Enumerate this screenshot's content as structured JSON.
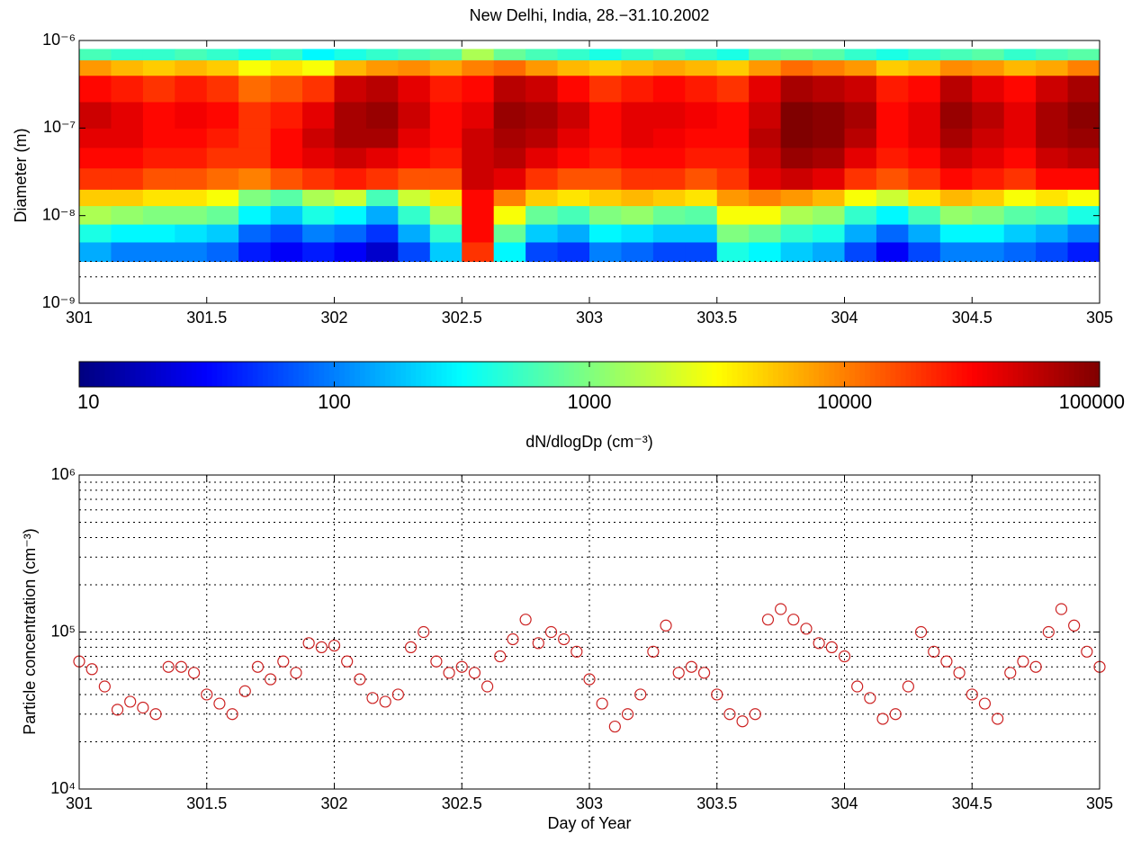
{
  "chart_data": [
    {
      "type": "heatmap",
      "title": "New Delhi, India, 28.−31.10.2002",
      "ylabel": "Diameter (m)",
      "xlim": [
        301,
        305
      ],
      "xticks": [
        301,
        301.5,
        302,
        302.5,
        303,
        303.5,
        304,
        304.5,
        305
      ],
      "ylim": [
        1e-09,
        1e-06
      ],
      "log_y": true,
      "yticks": [
        {
          "value": 1e-09,
          "label": "10⁻⁹"
        },
        {
          "value": 1e-08,
          "label": "10⁻⁸"
        },
        {
          "value": 1e-07,
          "label": "10⁻⁷"
        },
        {
          "value": 1e-06,
          "label": "10⁻⁶"
        }
      ],
      "ygrid_dotted": [
        2e-09,
        3e-09
      ],
      "colormap": "jet",
      "x_edges": [
        301,
        301.125,
        301.25,
        301.375,
        301.5,
        301.625,
        301.75,
        301.875,
        302,
        302.125,
        302.25,
        302.375,
        302.5,
        302.625,
        302.75,
        302.875,
        303,
        303.125,
        303.25,
        303.375,
        303.5,
        303.625,
        303.75,
        303.875,
        304,
        304.125,
        304.25,
        304.375,
        304.5,
        304.625,
        304.75,
        304.875,
        305
      ],
      "y_edges": [
        3e-09,
        5e-09,
        8e-09,
        1.3e-08,
        2e-08,
        3.5e-08,
        6e-08,
        1e-07,
        2e-07,
        4e-07,
        6e-07,
        8e-07
      ],
      "z": [
        [
          150,
          100,
          100,
          100,
          80,
          40,
          30,
          40,
          30,
          20,
          60,
          200,
          20000,
          300,
          60,
          50,
          100,
          80,
          60,
          60,
          400,
          300,
          200,
          150,
          60,
          30,
          60,
          100,
          100,
          80,
          60,
          40
        ],
        [
          400,
          300,
          300,
          250,
          200,
          80,
          60,
          100,
          80,
          50,
          150,
          500,
          30000,
          800,
          200,
          150,
          300,
          250,
          200,
          200,
          1000,
          800,
          500,
          400,
          150,
          80,
          150,
          300,
          300,
          200,
          150,
          100
        ],
        [
          1500,
          1200,
          1000,
          1000,
          800,
          300,
          200,
          400,
          300,
          150,
          500,
          1500,
          30000,
          3000,
          800,
          600,
          1000,
          1200,
          800,
          700,
          3000,
          3000,
          1500,
          1200,
          500,
          300,
          600,
          1200,
          1000,
          700,
          600,
          400
        ],
        [
          5000,
          5000,
          4000,
          4000,
          3000,
          1000,
          700,
          1500,
          2000,
          600,
          2000,
          4000,
          30000,
          10000,
          5000,
          4000,
          5000,
          6000,
          5000,
          4000,
          8000,
          10000,
          8000,
          6000,
          3000,
          2000,
          4000,
          6000,
          5000,
          3000,
          4000,
          3000
        ],
        [
          20000,
          20000,
          15000,
          15000,
          12000,
          10000,
          15000,
          20000,
          25000,
          20000,
          15000,
          15000,
          50000,
          40000,
          20000,
          15000,
          15000,
          20000,
          20000,
          15000,
          20000,
          40000,
          50000,
          40000,
          20000,
          15000,
          20000,
          30000,
          25000,
          20000,
          30000,
          30000
        ],
        [
          30000,
          30000,
          25000,
          25000,
          20000,
          20000,
          30000,
          40000,
          50000,
          40000,
          30000,
          25000,
          50000,
          60000,
          40000,
          30000,
          25000,
          30000,
          30000,
          25000,
          25000,
          50000,
          80000,
          70000,
          40000,
          25000,
          30000,
          50000,
          40000,
          30000,
          50000,
          60000
        ],
        [
          40000,
          40000,
          30000,
          30000,
          25000,
          20000,
          30000,
          50000,
          70000,
          70000,
          40000,
          30000,
          50000,
          70000,
          60000,
          40000,
          30000,
          40000,
          35000,
          30000,
          30000,
          60000,
          100000,
          90000,
          60000,
          30000,
          40000,
          70000,
          50000,
          40000,
          70000,
          80000
        ],
        [
          50000,
          40000,
          30000,
          35000,
          30000,
          20000,
          25000,
          40000,
          70000,
          80000,
          50000,
          30000,
          40000,
          80000,
          70000,
          50000,
          30000,
          40000,
          40000,
          35000,
          30000,
          50000,
          100000,
          90000,
          70000,
          30000,
          40000,
          80000,
          60000,
          40000,
          70000,
          90000
        ],
        [
          30000,
          25000,
          20000,
          25000,
          20000,
          12000,
          15000,
          20000,
          50000,
          60000,
          40000,
          25000,
          30000,
          60000,
          50000,
          30000,
          20000,
          25000,
          30000,
          25000,
          20000,
          40000,
          70000,
          60000,
          50000,
          25000,
          30000,
          60000,
          40000,
          30000,
          50000,
          70000
        ],
        [
          8000,
          6000,
          5000,
          6000,
          5000,
          3000,
          4000,
          3000,
          6000,
          8000,
          9000,
          7000,
          10000,
          12000,
          8000,
          6000,
          5000,
          6000,
          7000,
          6000,
          5000,
          8000,
          12000,
          10000,
          8000,
          5000,
          6000,
          9000,
          8000,
          6000,
          7000,
          10000
        ],
        [
          600,
          500,
          500,
          600,
          500,
          400,
          500,
          300,
          400,
          500,
          600,
          700,
          1500,
          800,
          600,
          500,
          400,
          500,
          600,
          500,
          400,
          700,
          800,
          700,
          500,
          400,
          500,
          600,
          700,
          500,
          600,
          700
        ]
      ],
      "colorbar": {
        "lim": [
          10,
          100000
        ],
        "ticks": [
          10,
          100,
          1000,
          10000,
          100000
        ],
        "label": "dN/dlogDp (cm⁻³)"
      }
    },
    {
      "type": "scatter",
      "xlabel": "Day of Year",
      "ylabel": "Particle concentration (cm⁻³)",
      "color": "#cc2222",
      "xlim": [
        301,
        305
      ],
      "xticks": [
        301,
        301.5,
        302,
        302.5,
        303,
        303.5,
        304,
        304.5,
        305
      ],
      "ylim": [
        10000,
        1000000
      ],
      "log_y": true,
      "grid": true,
      "yticks": [
        {
          "value": 10000,
          "label": "10⁴"
        },
        {
          "value": 100000,
          "label": "10⁵"
        },
        {
          "value": 1000000,
          "label": "10⁶"
        }
      ],
      "minor_yticks": [
        20000,
        30000,
        40000,
        50000,
        60000,
        70000,
        80000,
        90000,
        200000,
        300000,
        400000,
        500000,
        600000,
        700000,
        800000,
        900000
      ],
      "x": [
        301,
        301.05,
        301.1,
        301.15,
        301.2,
        301.25,
        301.3,
        301.35,
        301.4,
        301.45,
        301.5,
        301.55,
        301.6,
        301.65,
        301.7,
        301.75,
        301.8,
        301.85,
        301.9,
        301.95,
        302,
        302.05,
        302.1,
        302.15,
        302.2,
        302.25,
        302.3,
        302.35,
        302.4,
        302.45,
        302.5,
        302.55,
        302.6,
        302.65,
        302.7,
        302.75,
        302.8,
        302.85,
        302.9,
        302.95,
        303,
        303.05,
        303.1,
        303.15,
        303.2,
        303.25,
        303.3,
        303.35,
        303.4,
        303.45,
        303.5,
        303.55,
        303.6,
        303.65,
        303.7,
        303.75,
        303.8,
        303.85,
        303.9,
        303.95,
        304,
        304.05,
        304.1,
        304.15,
        304.2,
        304.25,
        304.3,
        304.35,
        304.4,
        304.45,
        304.5,
        304.55,
        304.6,
        304.65,
        304.7,
        304.75,
        304.8,
        304.85,
        304.9,
        304.95,
        305
      ],
      "values": [
        65000,
        58000,
        45000,
        32000,
        36000,
        33000,
        30000,
        60000,
        60000,
        55000,
        40000,
        35000,
        30000,
        42000,
        60000,
        50000,
        65000,
        55000,
        85000,
        80000,
        82000,
        65000,
        50000,
        38000,
        36000,
        40000,
        80000,
        100000,
        65000,
        55000,
        60000,
        55000,
        45000,
        70000,
        90000,
        120000,
        85000,
        100000,
        90000,
        75000,
        50000,
        35000,
        25000,
        30000,
        40000,
        75000,
        110000,
        55000,
        60000,
        55000,
        40000,
        30000,
        27000,
        30000,
        120000,
        140000,
        120000,
        105000,
        85000,
        80000,
        70000,
        45000,
        38000,
        28000,
        30000,
        45000,
        100000,
        75000,
        65000,
        55000,
        40000,
        35000,
        28000,
        55000,
        65000,
        60000,
        100000,
        140000,
        110000,
        75000,
        60000
      ]
    }
  ]
}
